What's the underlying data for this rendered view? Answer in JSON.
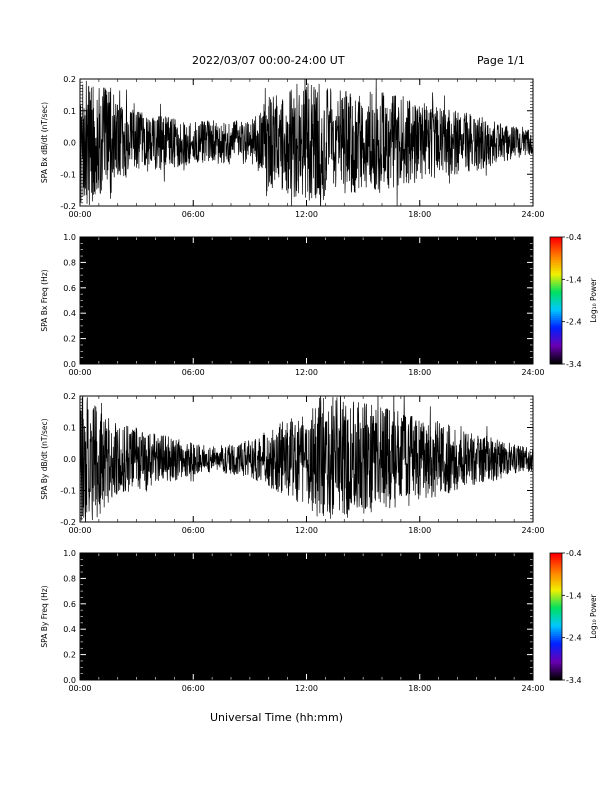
{
  "header": {
    "date_range": "2022/03/07  00:00-24:00 UT",
    "page": "Page 1/1"
  },
  "colors": {
    "trace": "#000000",
    "spectrogram_background": "#000000",
    "colorbar": [
      "#000000",
      "#6a00b4",
      "#0020ff",
      "#00c8ff",
      "#00e060",
      "#f0f000",
      "#ff8000",
      "#ff0000"
    ]
  },
  "chart_data": [
    {
      "id": "panel-bx",
      "type": "line",
      "ylabel": "SPA Bx dB/dt (nT/sec)",
      "ylim": [
        -0.2,
        0.2
      ],
      "yticks": [
        "-0.2",
        "-0.1",
        "0.0",
        "0.1",
        "0.2"
      ],
      "ytick_values": [
        -0.2,
        -0.1,
        0.0,
        0.1,
        0.2
      ],
      "xlim": [
        "00:00",
        "24:00"
      ],
      "xticks": [
        "00:00",
        "06:00",
        "12:00",
        "18:00",
        "24:00"
      ],
      "envelope": {
        "hours": [
          0,
          0.5,
          1,
          1.5,
          2,
          3,
          4,
          5,
          6,
          7,
          8,
          9,
          9.5,
          10,
          11,
          12,
          13,
          14,
          15,
          16,
          17,
          18,
          19,
          20,
          21,
          22,
          23,
          24
        ],
        "amplitude": [
          0.2,
          0.2,
          0.18,
          0.2,
          0.12,
          0.1,
          0.09,
          0.08,
          0.07,
          0.07,
          0.07,
          0.07,
          0.1,
          0.15,
          0.17,
          0.2,
          0.18,
          0.17,
          0.16,
          0.16,
          0.15,
          0.12,
          0.11,
          0.1,
          0.09,
          0.07,
          0.05,
          0.04
        ]
      }
    },
    {
      "id": "panel-bx-spec",
      "type": "heatmap",
      "ylabel": "SPA Bx Freq (Hz)",
      "ylim": [
        0.0,
        1.0
      ],
      "yticks": [
        "0.0",
        "0.2",
        "0.4",
        "0.6",
        "0.8",
        "1.0"
      ],
      "ytick_values": [
        0.0,
        0.2,
        0.4,
        0.6,
        0.8,
        1.0
      ],
      "xlim": [
        "00:00",
        "24:00"
      ],
      "xticks": [
        "00:00",
        "06:00",
        "12:00",
        "18:00",
        "24:00"
      ],
      "colorbar": {
        "label": "Log₁₀ Power",
        "range": [
          -3.4,
          -0.4
        ],
        "ticks": [
          "-0.4",
          "-1.4",
          "-2.4",
          "-3.4"
        ],
        "tick_values": [
          -0.4,
          -1.4,
          -2.4,
          -3.4
        ]
      }
    },
    {
      "id": "panel-by",
      "type": "line",
      "ylabel": "SPA By dB/dt (nT/sec)",
      "ylim": [
        -0.2,
        0.2
      ],
      "yticks": [
        "-0.2",
        "-0.1",
        "0.0",
        "0.1",
        "0.2"
      ],
      "ytick_values": [
        -0.2,
        -0.1,
        0.0,
        0.1,
        0.2
      ],
      "xlim": [
        "00:00",
        "24:00"
      ],
      "xticks": [
        "00:00",
        "06:00",
        "12:00",
        "18:00",
        "24:00"
      ],
      "envelope": {
        "hours": [
          0,
          0.5,
          1,
          1.5,
          2,
          3,
          4,
          5,
          6,
          7,
          8,
          9,
          10,
          11,
          12,
          12.5,
          13,
          14,
          15,
          16,
          17,
          18,
          19,
          20,
          21,
          22,
          23,
          24
        ],
        "amplitude": [
          0.2,
          0.2,
          0.2,
          0.14,
          0.12,
          0.1,
          0.08,
          0.07,
          0.05,
          0.04,
          0.05,
          0.06,
          0.09,
          0.13,
          0.16,
          0.2,
          0.2,
          0.2,
          0.18,
          0.17,
          0.15,
          0.13,
          0.12,
          0.1,
          0.08,
          0.07,
          0.05,
          0.04
        ]
      }
    },
    {
      "id": "panel-by-spec",
      "type": "heatmap",
      "ylabel": "SPA By Freq (Hz)",
      "ylim": [
        0.0,
        1.0
      ],
      "yticks": [
        "0.0",
        "0.2",
        "0.4",
        "0.6",
        "0.8",
        "1.0"
      ],
      "ytick_values": [
        0.0,
        0.2,
        0.4,
        0.6,
        0.8,
        1.0
      ],
      "xlim": [
        "00:00",
        "24:00"
      ],
      "xticks": [
        "00:00",
        "06:00",
        "12:00",
        "18:00",
        "24:00"
      ],
      "colorbar": {
        "label": "Log₁₀ Power",
        "range": [
          -3.4,
          -0.4
        ],
        "ticks": [
          "-0.4",
          "-1.4",
          "-2.4",
          "-3.4"
        ],
        "tick_values": [
          -0.4,
          -1.4,
          -2.4,
          -3.4
        ]
      }
    }
  ],
  "xlabel": "Universal Time (hh:mm)"
}
